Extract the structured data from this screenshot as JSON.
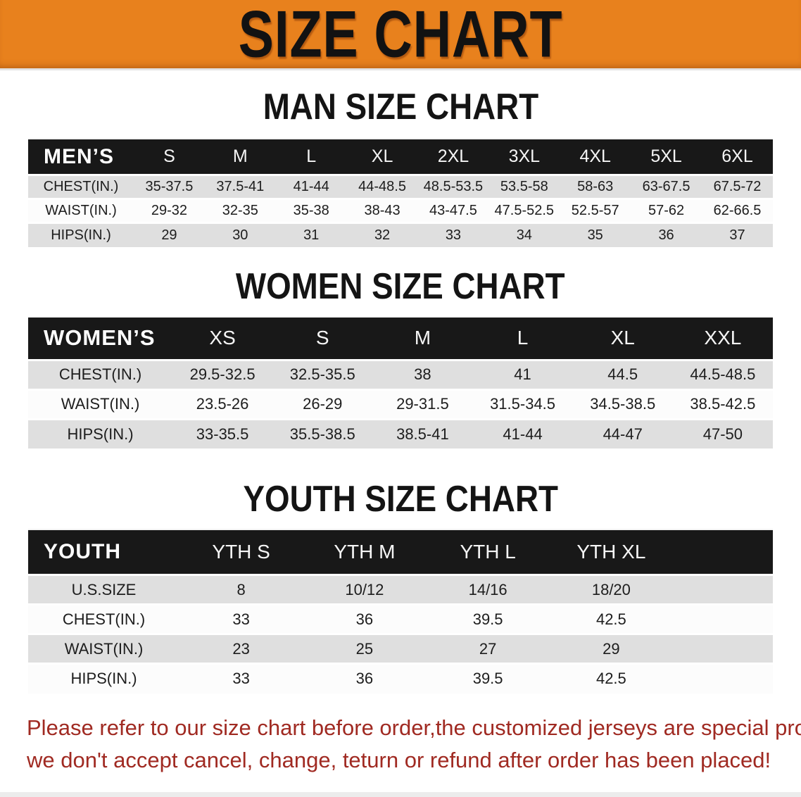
{
  "banner": {
    "title": "SIZE CHART",
    "bg_color": "#E8811D",
    "text_color": "#121212"
  },
  "colors": {
    "header_bar": "#181818",
    "stripe_gray": "#DFDFDF",
    "stripe_white": "#FFFFFF",
    "disclaimer_red": "#A02A22"
  },
  "sections": [
    {
      "heading": "MAN SIZE CHART",
      "label": "MEN’S",
      "columns": [
        "S",
        "M",
        "L",
        "XL",
        "2XL",
        "3XL",
        "4XL",
        "5XL",
        "6XL"
      ],
      "rows": [
        {
          "label": "CHEST(IN.)",
          "values": [
            "35-37.5",
            "37.5-41",
            "41-44",
            "44-48.5",
            "48.5-53.5",
            "53.5-58",
            "58-63",
            "63-67.5",
            "67.5-72"
          ]
        },
        {
          "label": "WAIST(IN.)",
          "values": [
            "29-32",
            "32-35",
            "35-38",
            "38-43",
            "43-47.5",
            "47.5-52.5",
            "52.5-57",
            "57-62",
            "62-66.5"
          ]
        },
        {
          "label": "HIPS(IN.)",
          "values": [
            "29",
            "30",
            "31",
            "32",
            "33",
            "34",
            "35",
            "36",
            "37"
          ]
        }
      ]
    },
    {
      "heading": "WOMEN SIZE CHART",
      "label": "WOMEN’S",
      "columns": [
        "XS",
        "S",
        "M",
        "L",
        "XL",
        "XXL"
      ],
      "rows": [
        {
          "label": "CHEST(IN.)",
          "values": [
            "29.5-32.5",
            "32.5-35.5",
            "38",
            "41",
            "44.5",
            "44.5-48.5"
          ]
        },
        {
          "label": "WAIST(IN.)",
          "values": [
            "23.5-26",
            "26-29",
            "29-31.5",
            "31.5-34.5",
            "34.5-38.5",
            "38.5-42.5"
          ]
        },
        {
          "label": "HIPS(IN.)",
          "values": [
            "33-35.5",
            "35.5-38.5",
            "38.5-41",
            "41-44",
            "44-47",
            "47-50"
          ]
        }
      ]
    },
    {
      "heading": "YOUTH SIZE CHART",
      "label": "YOUTH",
      "columns": [
        "YTH S",
        "YTH M",
        "YTH L",
        "YTH XL"
      ],
      "rows": [
        {
          "label": "U.S.SIZE",
          "values": [
            "8",
            "10/12",
            "14/16",
            "18/20"
          ]
        },
        {
          "label": "CHEST(IN.)",
          "values": [
            "33",
            "36",
            "39.5",
            "42.5"
          ]
        },
        {
          "label": "WAIST(IN.)",
          "values": [
            "23",
            "25",
            "27",
            "29"
          ]
        },
        {
          "label": "HIPS(IN.)",
          "values": [
            "33",
            "36",
            "39.5",
            "42.5"
          ]
        }
      ]
    }
  ],
  "disclaimer": {
    "line1": "Please refer to our size chart before order,the customized jerseys are special products,",
    "line2": "we don't accept cancel, change, teturn or refund after order has been placed!"
  }
}
